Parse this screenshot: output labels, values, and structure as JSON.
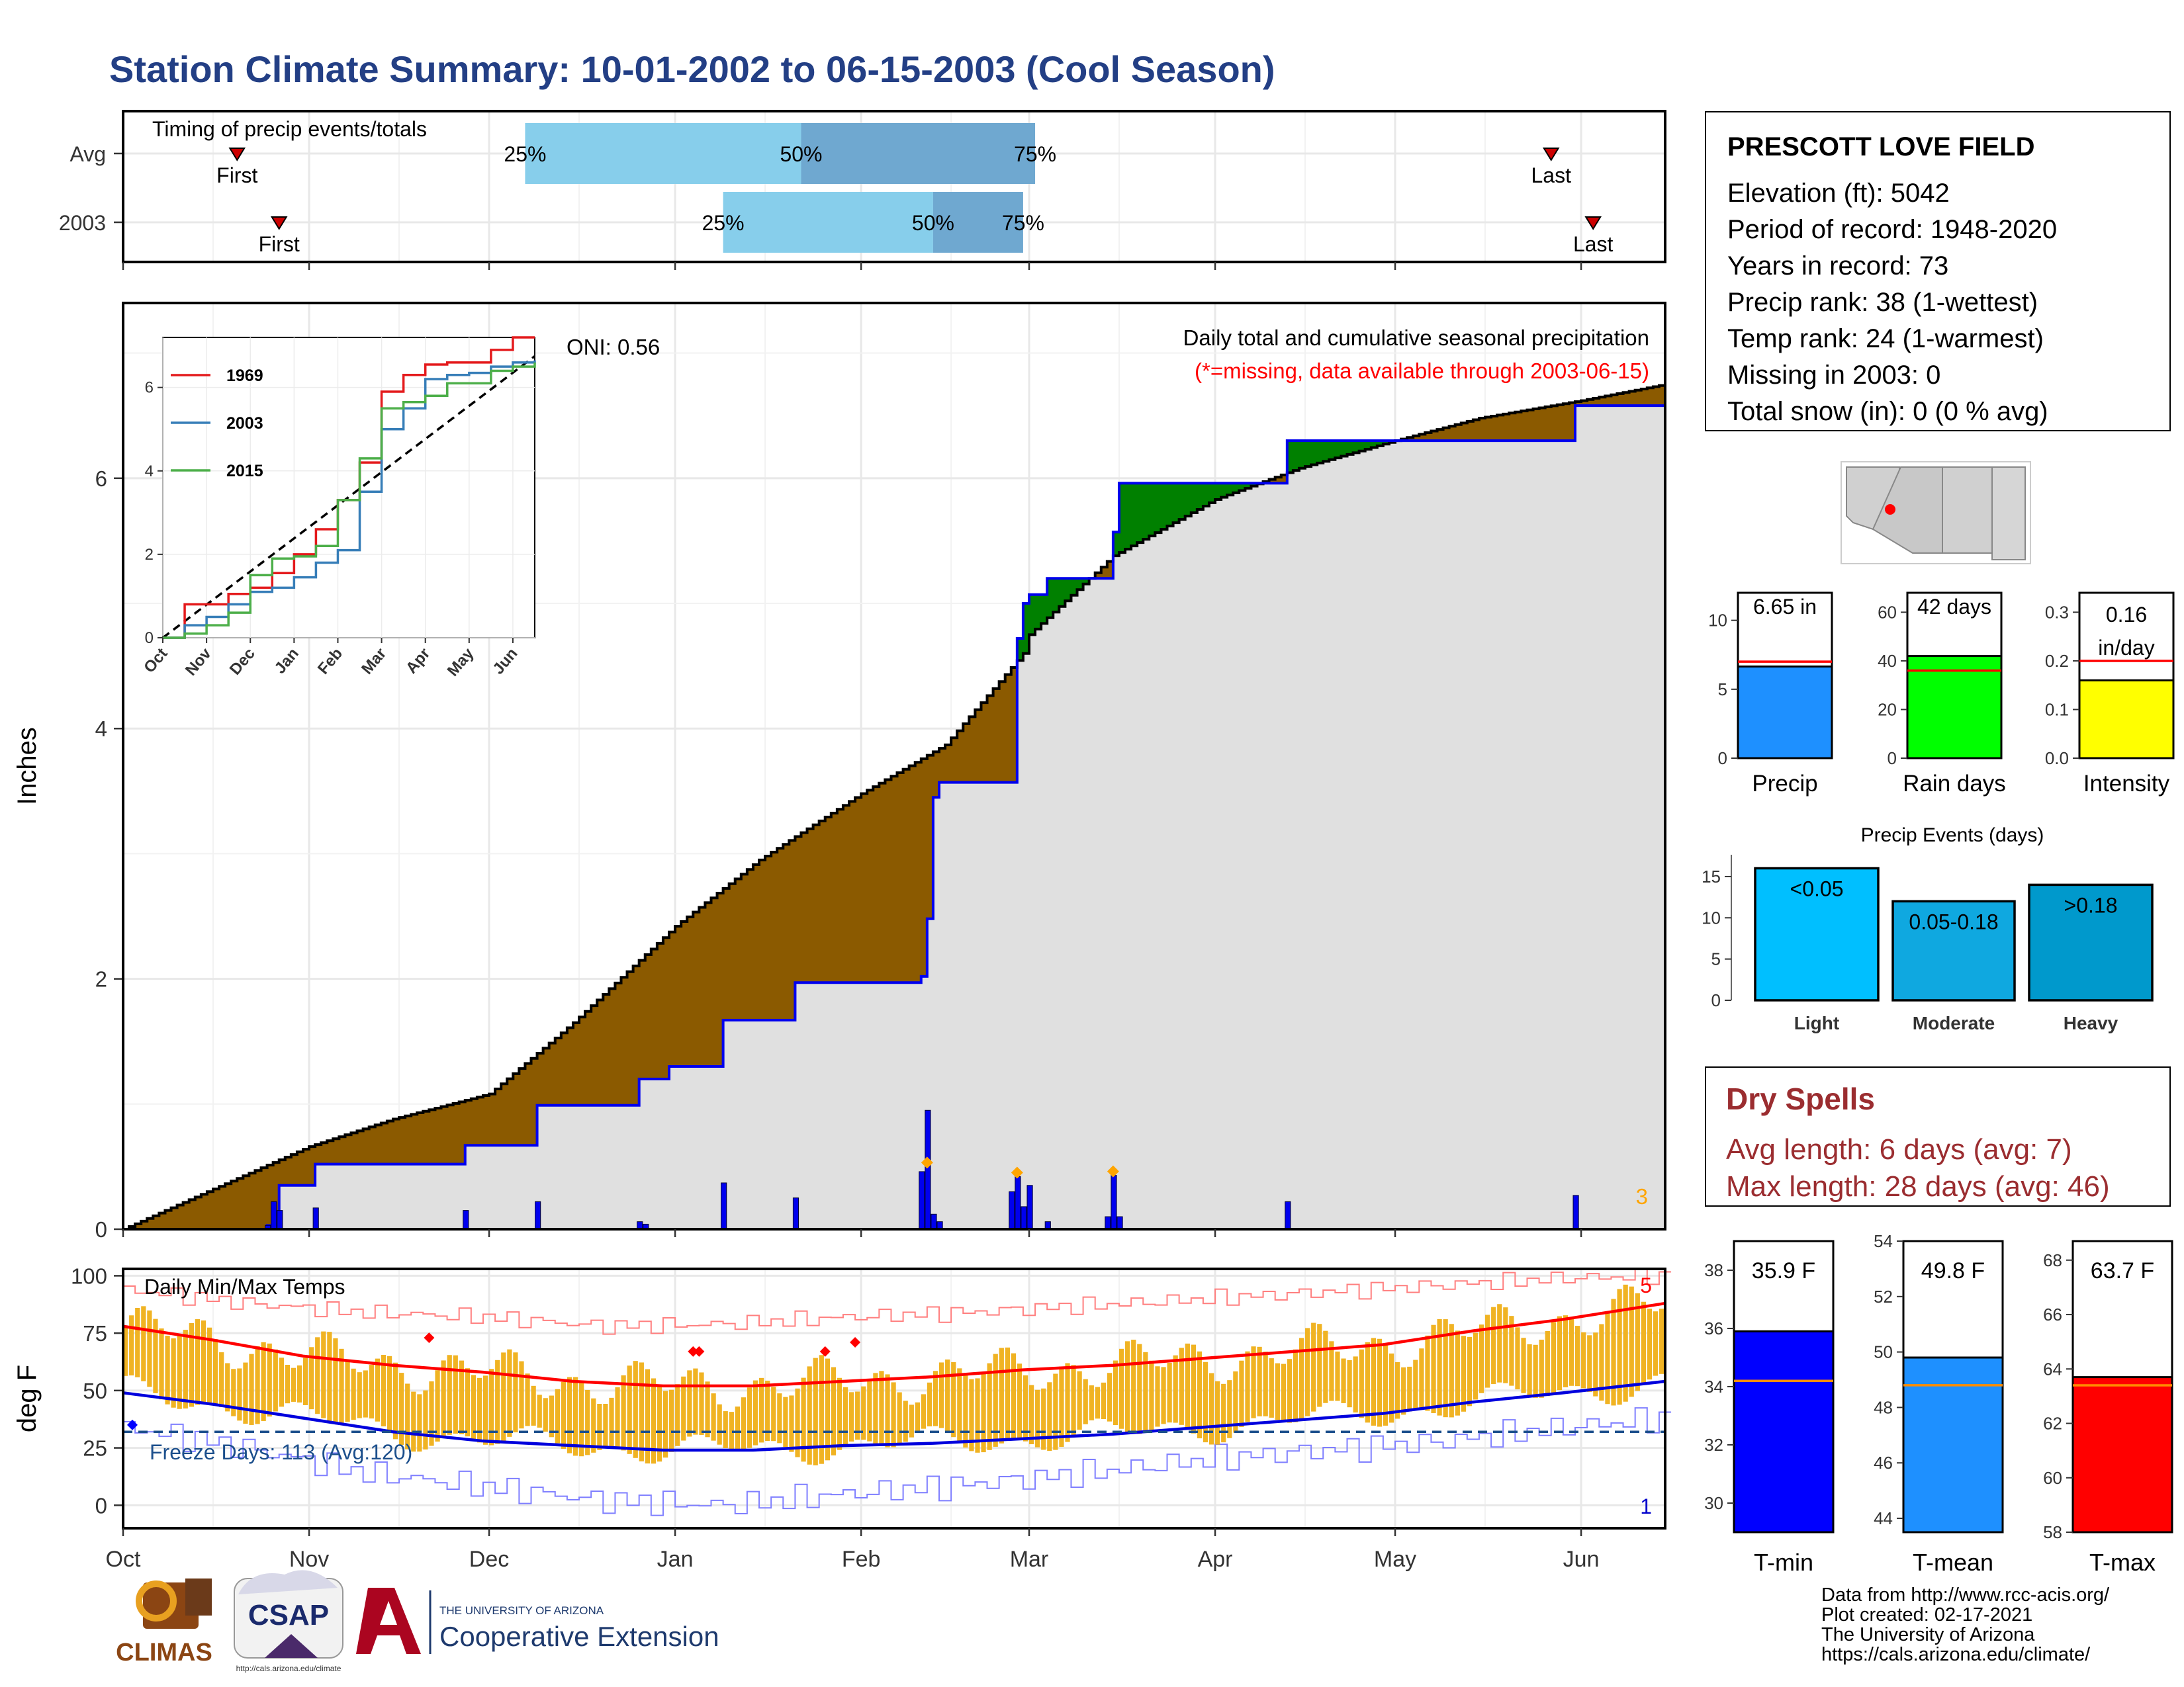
{
  "title": "Station Climate Summary: 10-01-2002 to 06-15-2003 (Cool Season)",
  "station": {
    "name": "PRESCOTT LOVE FIELD",
    "lines": [
      "Elevation (ft): 5042",
      "Period of record: 1948-2020",
      "Years in record: 73",
      "Precip rank: 38 (1-wettest)",
      "Temp rank: 24 (1-warmest)",
      "Missing in 2003: 0",
      "Total snow (in): 0 (0 % avg)"
    ]
  },
  "months": [
    "Oct",
    "Nov",
    "Dec",
    "Jan",
    "Feb",
    "Mar",
    "Apr",
    "May",
    "Jun"
  ],
  "colors": {
    "avg_fill": "#8b5a00",
    "above_fill": "#008000",
    "blue_line": "#0000ee",
    "grey": "#e0e0e0",
    "temp_bar": "#f0b323",
    "max_line": "#ff0000",
    "min_line": "#0000dd",
    "precip_bar": "#1e90ff",
    "rain_bar": "#00ff00",
    "intensity_bar": "#ffff00",
    "light": "#00bfff",
    "moderate": "#0fa8e0",
    "heavy": "#0099cc",
    "tmin_bar": "#0000ff",
    "tmean_bar": "#1e90ff",
    "tmax_bar": "#ff0000",
    "dry_title": "#9b2d30",
    "avg_line": "#ff8c00"
  },
  "chart_data": [
    {
      "id": "timing",
      "type": "bar",
      "title": "Timing of precip events/totals",
      "categories": [
        "Avg",
        "2003"
      ],
      "rows": [
        {
          "label": "Avg",
          "first": "2002-10-20",
          "p25": "2002-12-07",
          "p50": "2003-01-22",
          "p75": "2003-03-02",
          "last": "2003-05-27",
          "first_label": "First",
          "last_label": "Last",
          "p25_label": "25%",
          "p50_label": "50%",
          "p75_label": "75%"
        },
        {
          "label": "2003",
          "first": "2002-10-27",
          "p25": "2003-01-09",
          "p50": "2003-02-13",
          "p75": "2003-02-28",
          "last": "2003-06-03",
          "first_label": "First",
          "last_label": "Last",
          "p25_label": "25%",
          "p50_label": "50%",
          "p75_label": "75%"
        }
      ]
    },
    {
      "id": "precip",
      "type": "area",
      "title": "Daily total and cumulative seasonal precipitation",
      "subtitle": "(*=missing, data available through 2003-06-15)",
      "annotation": "ONI: 0.56",
      "corner_label": "3",
      "ylabel": "Inches",
      "ylim": [
        0,
        7.4
      ],
      "yticks": [
        0,
        2,
        4,
        6
      ],
      "cumulative_avg": {
        "x": [
          "2002-10-01",
          "2002-10-15",
          "2002-11-01",
          "2002-11-15",
          "2002-12-01",
          "2002-12-15",
          "2003-01-01",
          "2003-01-15",
          "2003-02-01",
          "2003-02-15",
          "2003-02-28",
          "2003-03-01",
          "2003-03-15",
          "2003-04-01",
          "2003-04-15",
          "2003-05-01",
          "2003-05-15",
          "2003-06-01",
          "2003-06-15"
        ],
        "y": [
          0,
          0.3,
          0.66,
          0.88,
          1.08,
          1.65,
          2.42,
          2.95,
          3.48,
          3.87,
          4.6,
          4.75,
          5.38,
          5.83,
          6.08,
          6.3,
          6.48,
          6.62,
          6.75
        ]
      },
      "cumulative_2003": {
        "x": [
          "2002-10-01",
          "2002-10-25",
          "2002-10-27",
          "2002-11-02",
          "2002-11-27",
          "2002-12-09",
          "2002-12-26",
          "2002-12-31",
          "2003-01-09",
          "2003-01-21",
          "2003-02-11",
          "2003-02-12",
          "2003-02-13",
          "2003-02-14",
          "2003-02-26",
          "2003-02-27",
          "2003-02-28",
          "2003-03-01",
          "2003-03-04",
          "2003-03-14",
          "2003-03-15",
          "2003-03-16",
          "2003-04-13",
          "2003-05-31",
          "2003-06-15"
        ],
        "y": [
          0,
          0.03,
          0.35,
          0.52,
          0.67,
          0.99,
          1.2,
          1.3,
          1.67,
          1.97,
          2.02,
          2.48,
          3.45,
          3.57,
          3.57,
          4.72,
          5.0,
          5.07,
          5.2,
          5.2,
          5.57,
          5.96,
          6.3,
          6.58,
          6.65
        ]
      },
      "daily_2003": {
        "x": [
          "2002-10-25",
          "2002-10-26",
          "2002-10-27",
          "2002-11-02",
          "2002-11-27",
          "2002-12-09",
          "2002-12-26",
          "2002-12-27",
          "2003-01-09",
          "2003-01-21",
          "2003-02-11",
          "2003-02-12",
          "2003-02-13",
          "2003-02-14",
          "2003-02-26",
          "2003-02-27",
          "2003-02-28",
          "2003-03-01",
          "2003-03-04",
          "2003-03-14",
          "2003-03-15",
          "2003-03-16",
          "2003-04-13",
          "2003-05-31"
        ],
        "y": [
          0.03,
          0.22,
          0.15,
          0.17,
          0.15,
          0.22,
          0.06,
          0.04,
          0.37,
          0.25,
          0.46,
          0.95,
          0.12,
          0.06,
          0.3,
          0.42,
          0.18,
          0.35,
          0.06,
          0.1,
          0.43,
          0.1,
          0.22,
          0.27
        ]
      },
      "missing_markers": [
        "2003-02-12",
        "2003-02-27",
        "2003-03-15"
      ]
    },
    {
      "id": "inset",
      "type": "line",
      "series": [
        {
          "name": "1969",
          "color": "#e41a1c",
          "x": [
            0,
            0.5,
            1,
            1.5,
            2,
            2.5,
            3,
            3.5,
            4,
            4.5,
            5,
            5.5,
            6,
            6.5,
            7,
            7.5,
            8,
            8.5
          ],
          "y": [
            0,
            0.8,
            0.8,
            1.05,
            1.2,
            1.55,
            2.0,
            2.6,
            3.3,
            4.2,
            5.9,
            6.3,
            6.55,
            6.6,
            6.6,
            6.9,
            7.2,
            7.2
          ]
        },
        {
          "name": "2003",
          "color": "#377eb8",
          "x": [
            0,
            0.5,
            1,
            1.5,
            2,
            2.5,
            3,
            3.5,
            4,
            4.5,
            5,
            5.5,
            6,
            6.5,
            7,
            7.5,
            8,
            8.5
          ],
          "y": [
            0,
            0.3,
            0.5,
            0.8,
            1.1,
            1.2,
            1.45,
            1.8,
            2.1,
            3.5,
            5.0,
            5.5,
            6.2,
            6.3,
            6.35,
            6.5,
            6.6,
            6.65
          ]
        },
        {
          "name": "2015",
          "color": "#4daf4a",
          "x": [
            0,
            0.5,
            1,
            1.5,
            2,
            2.5,
            3,
            3.5,
            4,
            4.5,
            5,
            5.5,
            6,
            6.5,
            7,
            7.5,
            8,
            8.5
          ],
          "y": [
            0,
            0.1,
            0.3,
            0.6,
            1.5,
            1.9,
            1.95,
            2.2,
            3.3,
            4.3,
            5.5,
            5.65,
            5.8,
            6.1,
            6.1,
            6.4,
            6.5,
            6.6
          ]
        }
      ],
      "avg_line": {
        "x": [
          0,
          8.5
        ],
        "y": [
          0,
          6.75
        ]
      },
      "ylim": [
        0,
        7.2
      ],
      "yticks": [
        0,
        2,
        4,
        6
      ],
      "xticks": [
        "Oct",
        "Nov",
        "Dec",
        "Jan",
        "Feb",
        "Mar",
        "Apr",
        "May",
        "Jun"
      ]
    },
    {
      "id": "temps",
      "type": "bar",
      "title": "Daily Min/Max Temps",
      "ylabel": "deg F",
      "ylim": [
        -10,
        103
      ],
      "yticks": [
        0,
        25,
        50,
        75,
        100
      ],
      "freeze_text": "Freeze Days: 113 (Avg:120)",
      "freeze_line": 32,
      "corner_top": "5",
      "corner_bottom": "1",
      "avg_max": {
        "x": [
          0,
          15,
          30,
          45,
          60,
          75,
          90,
          105,
          120,
          135,
          150,
          165,
          180,
          195,
          210,
          225,
          240,
          257
        ],
        "y": [
          78,
          72,
          65,
          61,
          58,
          54,
          52,
          52,
          54,
          56,
          59,
          61,
          64,
          67,
          70,
          76,
          81,
          88
        ]
      },
      "avg_min": {
        "x": [
          0,
          15,
          30,
          45,
          60,
          75,
          90,
          105,
          120,
          135,
          150,
          165,
          180,
          195,
          210,
          225,
          240,
          257
        ],
        "y": [
          49,
          44,
          38,
          32,
          28,
          26,
          24,
          24,
          26,
          27,
          29,
          31,
          34,
          37,
          40,
          45,
          49,
          54
        ]
      },
      "record_max": {
        "x": [
          0,
          20,
          40,
          60,
          80,
          100,
          120,
          140,
          160,
          180,
          200,
          220,
          240,
          257
        ],
        "y": [
          94,
          88,
          84,
          82,
          78,
          79,
          82,
          84,
          87,
          90,
          93,
          96,
          99,
          100
        ]
      },
      "record_min": {
        "x": [
          0,
          20,
          40,
          60,
          80,
          100,
          120,
          140,
          160,
          180,
          200,
          220,
          240,
          257
        ],
        "y": [
          34,
          25,
          14,
          8,
          2,
          0,
          5,
          9,
          14,
          20,
          24,
          28,
          34,
          38
        ]
      },
      "hi_points": [
        {
          "x": 51,
          "y": 73
        },
        {
          "x": 95,
          "y": 67
        },
        {
          "x": 96,
          "y": 67
        },
        {
          "x": 117,
          "y": 67
        },
        {
          "x": 122,
          "y": 71
        }
      ]
    },
    {
      "id": "summary_precip",
      "type": "bar",
      "categories": [
        "Precip",
        "Rain days",
        "Intensity"
      ],
      "panels": [
        {
          "label": "Precip",
          "value": 6.65,
          "avg": 7.0,
          "ymax": 12,
          "yticks": [
            0,
            5,
            10
          ],
          "value_label": "6.65 in"
        },
        {
          "label": "Rain days",
          "value": 42,
          "avg": 36,
          "ymax": 68,
          "yticks": [
            0,
            20,
            40,
            60
          ],
          "value_label": "42 days"
        },
        {
          "label": "Intensity",
          "value": 0.16,
          "avg": 0.2,
          "ymax": 0.34,
          "yticks": [
            0.0,
            0.1,
            0.2,
            0.3
          ],
          "value_label_1": "0.16",
          "value_label_2": "in/day"
        }
      ]
    },
    {
      "id": "events",
      "type": "bar",
      "title": "Precip Events (days)",
      "categories": [
        "Light",
        "Moderate",
        "Heavy"
      ],
      "values": [
        16,
        12,
        14
      ],
      "bar_labels": [
        "<0.05",
        "0.05-0.18",
        ">0.18"
      ],
      "ylim": [
        0,
        17
      ],
      "yticks": [
        0,
        5,
        10,
        15
      ]
    },
    {
      "id": "summary_temp",
      "type": "bar",
      "categories": [
        "T-min",
        "T-mean",
        "T-max"
      ],
      "panels": [
        {
          "label": "T-min",
          "value": 35.9,
          "avg": 34.2,
          "ymin": 29,
          "ymax": 39,
          "yticks": [
            30,
            32,
            34,
            36,
            38
          ],
          "value_label": "35.9 F"
        },
        {
          "label": "T-mean",
          "value": 49.8,
          "avg": 48.8,
          "ymin": 43.5,
          "ymax": 54,
          "yticks": [
            44,
            46,
            48,
            50,
            52,
            54
          ],
          "value_label": "49.8 F"
        },
        {
          "label": "T-max",
          "value": 63.7,
          "avg": 63.4,
          "ymin": 58,
          "ymax": 68.7,
          "yticks": [
            58,
            60,
            62,
            64,
            66,
            68
          ],
          "value_label": "63.7 F"
        }
      ]
    }
  ],
  "dry_spells": {
    "title": "Dry Spells",
    "avg_length": "Avg length: 6 days (avg: 7)",
    "max_length": "Max length: 28 days (avg: 46)"
  },
  "footer": [
    "Data from http://www.rcc-acis.org/",
    "Plot created: 02-17-2021",
    "The University of Arizona",
    "https://cals.arizona.edu/climate/"
  ],
  "logos": {
    "climas": "CLIMAS",
    "csap": "CSAP",
    "csap_url": "http://cals.arizona.edu/climate",
    "ua_small": "THE UNIVERSITY OF ARIZONA",
    "coop": "Cooperative Extension"
  }
}
